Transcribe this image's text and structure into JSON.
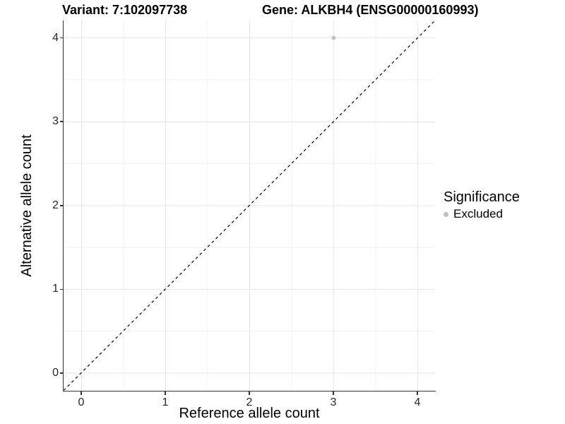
{
  "header": {
    "title_left": "Variant: 7:102097738",
    "title_right": "Gene: ALKBH4 (ENSG00000160993)"
  },
  "chart_data": {
    "type": "scatter",
    "title_left": "Variant: 7:102097738",
    "title_right": "Gene: ALKBH4 (ENSG00000160993)",
    "xlabel": "Reference allele count",
    "ylabel": "Alternative allele count",
    "x_ticks": [
      0,
      1,
      2,
      3,
      4
    ],
    "y_ticks": [
      0,
      1,
      2,
      3,
      4
    ],
    "x_minor_ticks": [
      0.5,
      1.5,
      2.5,
      3.5
    ],
    "y_minor_ticks": [
      0.5,
      1.5,
      2.5,
      3.5
    ],
    "xlim": [
      -0.21,
      4.21
    ],
    "ylim": [
      -0.21,
      4.21
    ],
    "grid": {
      "major": true,
      "minor": true,
      "major_color": "#e6e6e6",
      "minor_color": "#f2f2f2"
    },
    "identity_line": {
      "slope": 1,
      "intercept": 0,
      "style": "dashed",
      "color": "#000000"
    },
    "series": [
      {
        "name": "Excluded",
        "color": "#bfbfbf",
        "points": [
          {
            "x": 3,
            "y": 4
          }
        ]
      }
    ],
    "legend": {
      "title": "Significance",
      "position": "right",
      "entries": [
        {
          "label": "Excluded",
          "color": "#bfbfbf",
          "marker": "circle"
        }
      ]
    }
  },
  "colors": {
    "axis_line": "#333333",
    "tick_text": "#262626",
    "point": "#bfbfbf"
  }
}
